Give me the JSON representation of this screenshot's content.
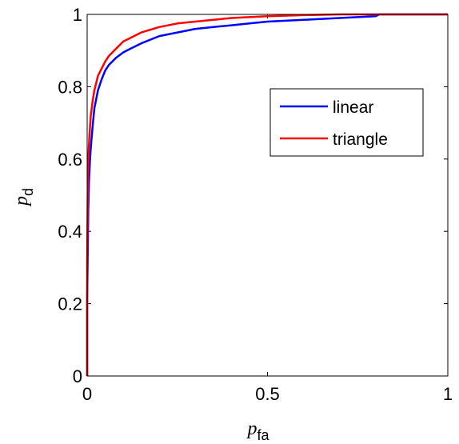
{
  "chart_data": {
    "type": "line",
    "xlabel": {
      "main": "p",
      "sub": "fa"
    },
    "ylabel": {
      "main": "p",
      "sub": "d"
    },
    "xlim": [
      0,
      1
    ],
    "ylim": [
      0,
      1
    ],
    "xticks": [
      0,
      0.5,
      1
    ],
    "xtick_labels": [
      "0",
      "0.5",
      "1"
    ],
    "yticks": [
      0,
      0.2,
      0.4,
      0.6,
      0.8,
      1
    ],
    "ytick_labels": [
      "0",
      "0.2",
      "0.4",
      "0.6",
      "0.8",
      "1"
    ],
    "grid": false,
    "legend_position": "upper-right",
    "series": [
      {
        "name": "linear",
        "color": "#0000ff",
        "x": [
          0,
          0.0,
          0.003,
          0.005,
          0.008,
          0.01,
          0.015,
          0.02,
          0.03,
          0.04,
          0.05,
          0.06,
          0.08,
          0.1,
          0.12,
          0.15,
          0.2,
          0.25,
          0.3,
          0.35,
          0.4,
          0.45,
          0.5,
          0.6,
          0.7,
          0.8,
          0.81,
          1.0
        ],
        "y": [
          0,
          0.21,
          0.46,
          0.54,
          0.6,
          0.63,
          0.69,
          0.74,
          0.79,
          0.82,
          0.845,
          0.86,
          0.88,
          0.895,
          0.905,
          0.92,
          0.94,
          0.95,
          0.96,
          0.965,
          0.97,
          0.975,
          0.98,
          0.985,
          0.99,
          0.995,
          1.0,
          1.0
        ]
      },
      {
        "name": "triangle",
        "color": "#ff0000",
        "x": [
          0,
          0.0,
          0.002,
          0.004,
          0.006,
          0.008,
          0.01,
          0.015,
          0.02,
          0.03,
          0.04,
          0.05,
          0.06,
          0.08,
          0.1,
          0.12,
          0.15,
          0.2,
          0.25,
          0.3,
          0.35,
          0.4,
          0.5,
          0.6,
          0.7,
          1.0
        ],
        "y": [
          0,
          0.31,
          0.55,
          0.62,
          0.66,
          0.69,
          0.72,
          0.76,
          0.79,
          0.83,
          0.85,
          0.87,
          0.885,
          0.905,
          0.925,
          0.935,
          0.95,
          0.965,
          0.975,
          0.98,
          0.985,
          0.99,
          0.995,
          0.998,
          1.0,
          1.0
        ]
      }
    ]
  }
}
